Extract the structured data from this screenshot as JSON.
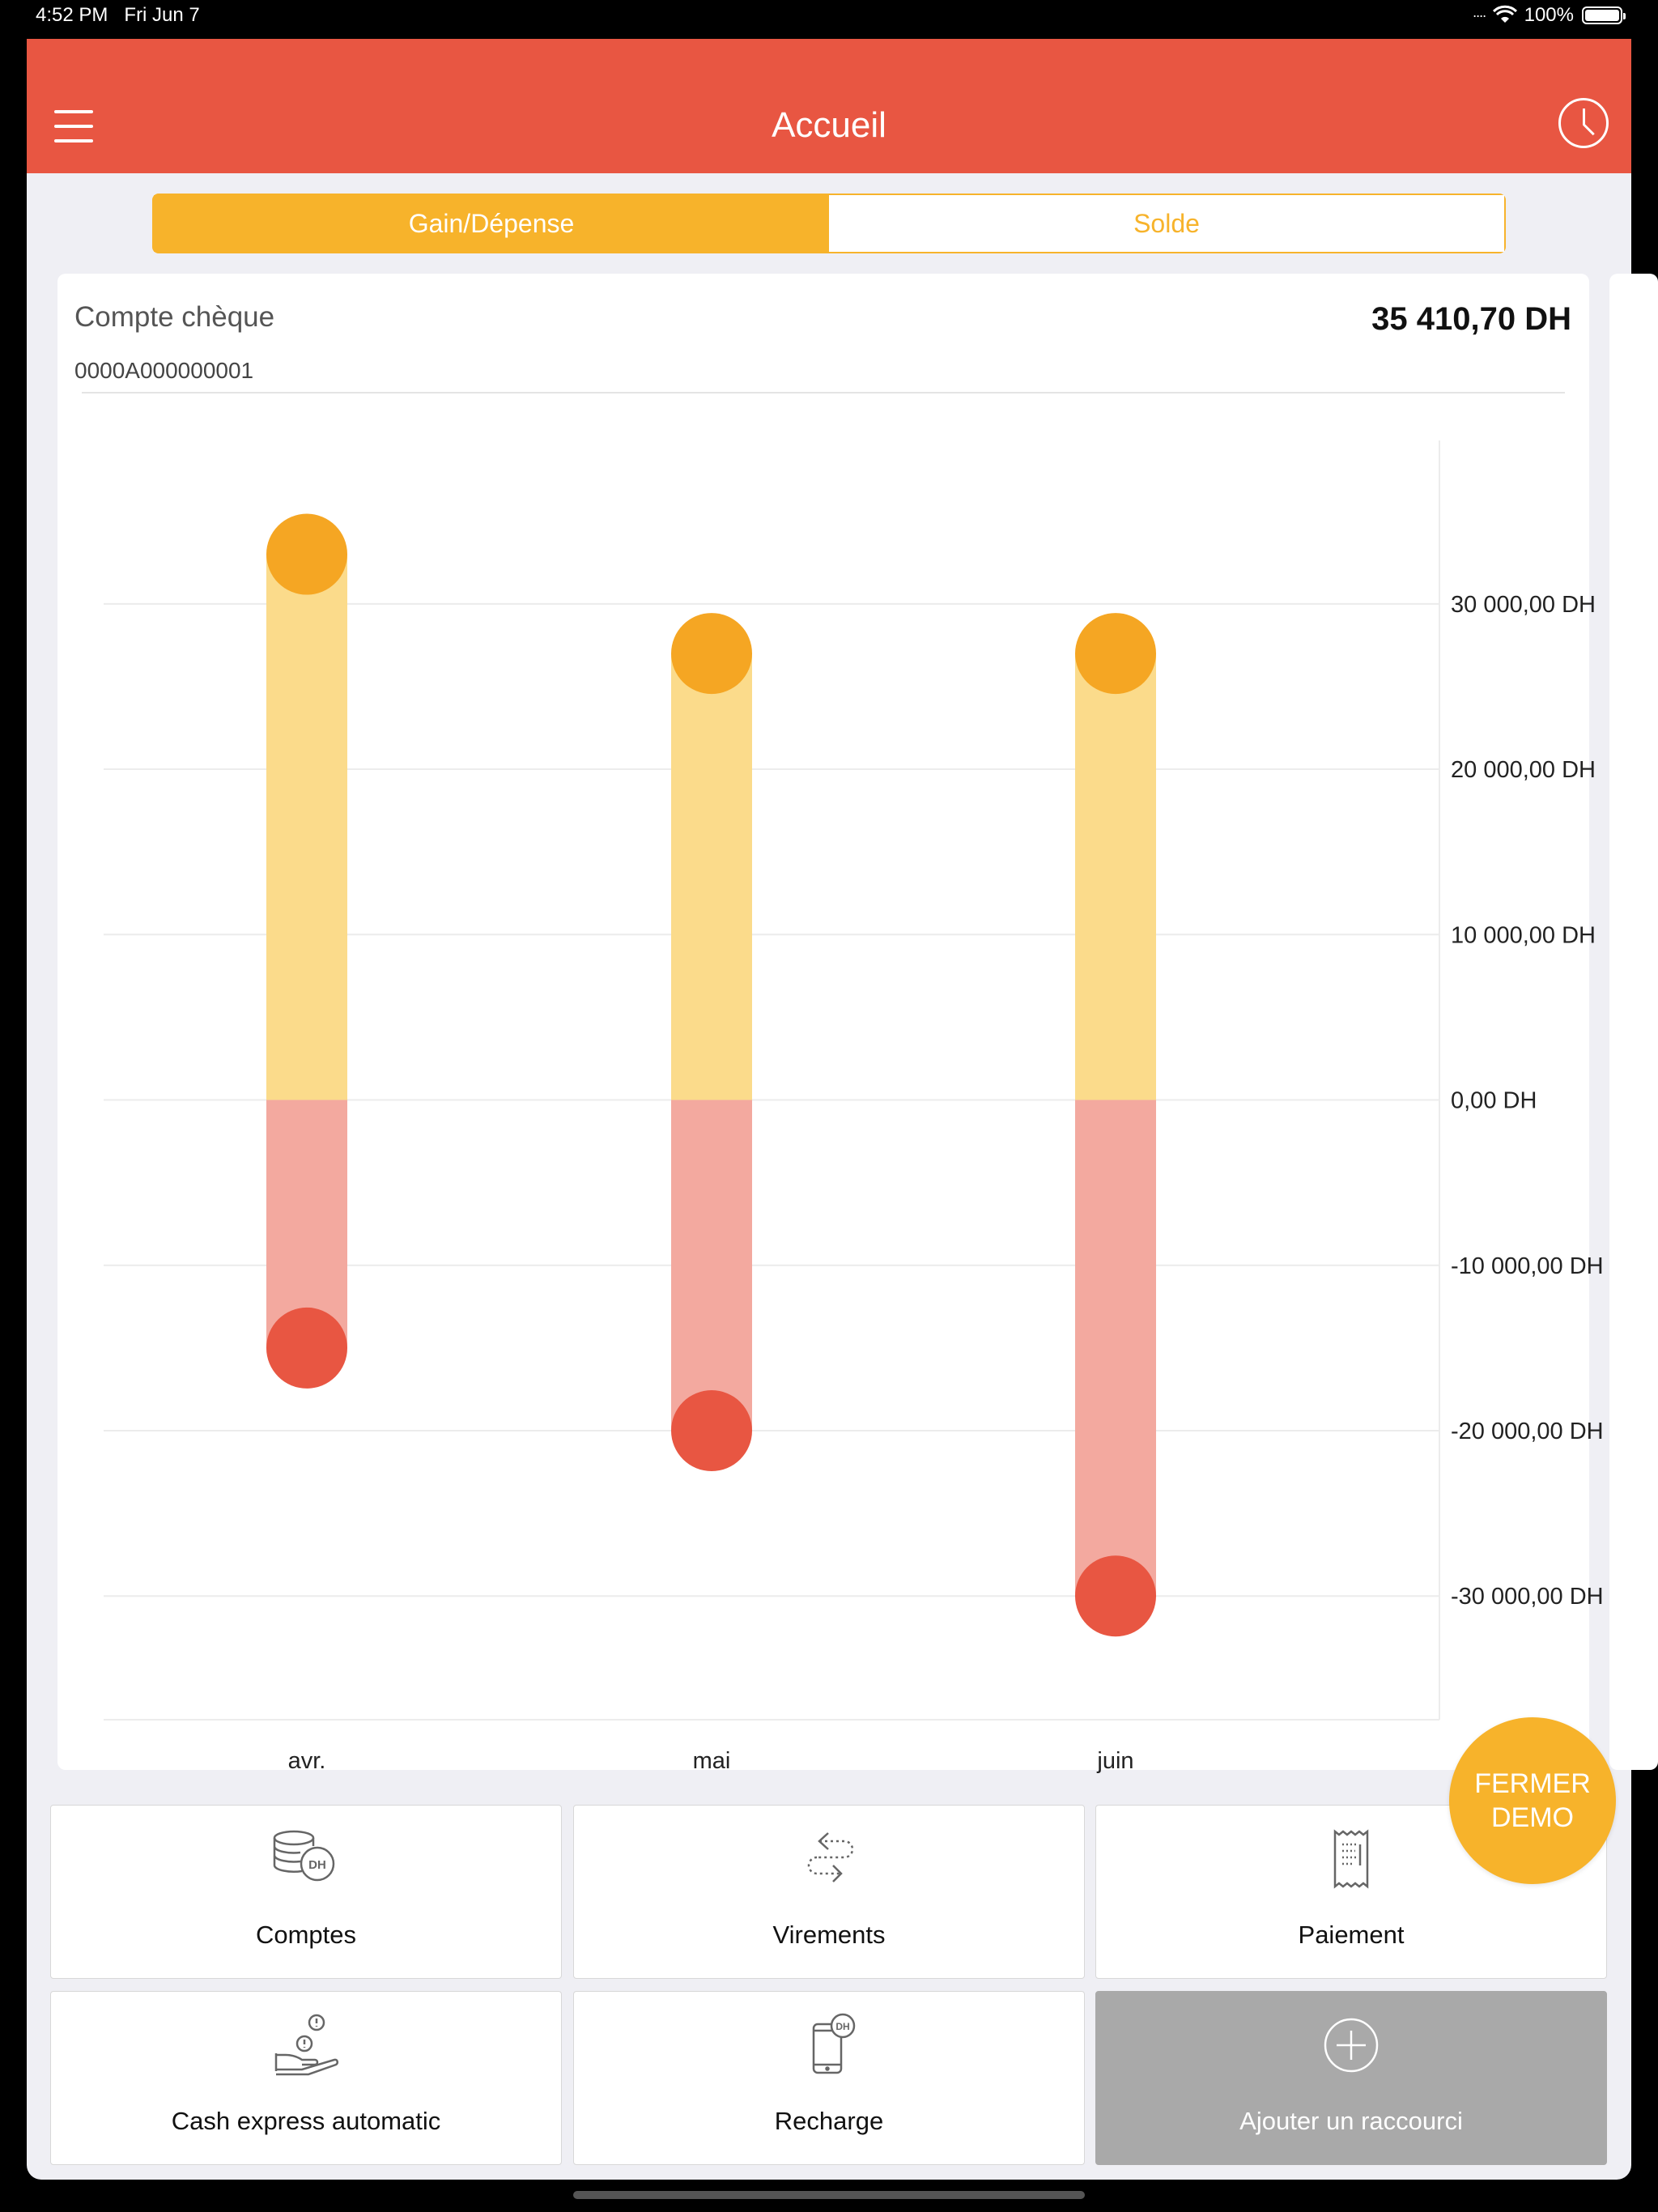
{
  "status_bar": {
    "time": "4:52 PM",
    "date": "Fri Jun 7",
    "battery": "100%"
  },
  "header": {
    "title": "Accueil",
    "menu_icon": "hamburger-menu-icon",
    "history_icon": "clock-icon"
  },
  "tabs": [
    {
      "label": "Gain/Dépense",
      "active": true
    },
    {
      "label": "Solde",
      "active": false
    }
  ],
  "account": {
    "name": "Compte chèque",
    "balance": "35 410,70 DH",
    "number": "0000A000000001"
  },
  "colors": {
    "brand": "#e85642",
    "accent": "#f7b32b",
    "gain_bar": "#fbdb8b",
    "gain_dot": "#f5a623",
    "expense_bar": "#f3a99f",
    "expense_dot": "#e85642"
  },
  "chart_data": {
    "type": "bar",
    "categories": [
      "avr.",
      "mai",
      "juin"
    ],
    "series": [
      {
        "values": [
          33000,
          27000,
          27000
        ]
      },
      {
        "values": [
          -15000,
          -20000,
          -30000
        ]
      }
    ],
    "y_ticks": [
      30000,
      20000,
      10000,
      0,
      -10000,
      -20000,
      -30000
    ],
    "y_tick_labels": [
      "30 000,00 DH",
      "20 000,00 DH",
      "10 000,00 DH",
      "0,00 DH",
      "-10 000,00 DH",
      "-20 000,00 DH",
      "-30 000,00 DH"
    ],
    "ylim": [
      -36500,
      39000
    ],
    "grid": true
  },
  "fab": {
    "line1": "FERMER",
    "line2": "DEMO"
  },
  "shortcuts": [
    {
      "label": "Comptes",
      "icon": "coins-dh-icon"
    },
    {
      "label": "Virements",
      "icon": "transfer-arrows-icon"
    },
    {
      "label": "Paiement",
      "icon": "receipt-icon"
    },
    {
      "label": "Cash express automatic",
      "icon": "hand-coin-icon"
    },
    {
      "label": "Recharge",
      "icon": "phone-dh-icon"
    },
    {
      "label": "Ajouter un raccourci",
      "icon": "plus-circle-icon"
    }
  ]
}
